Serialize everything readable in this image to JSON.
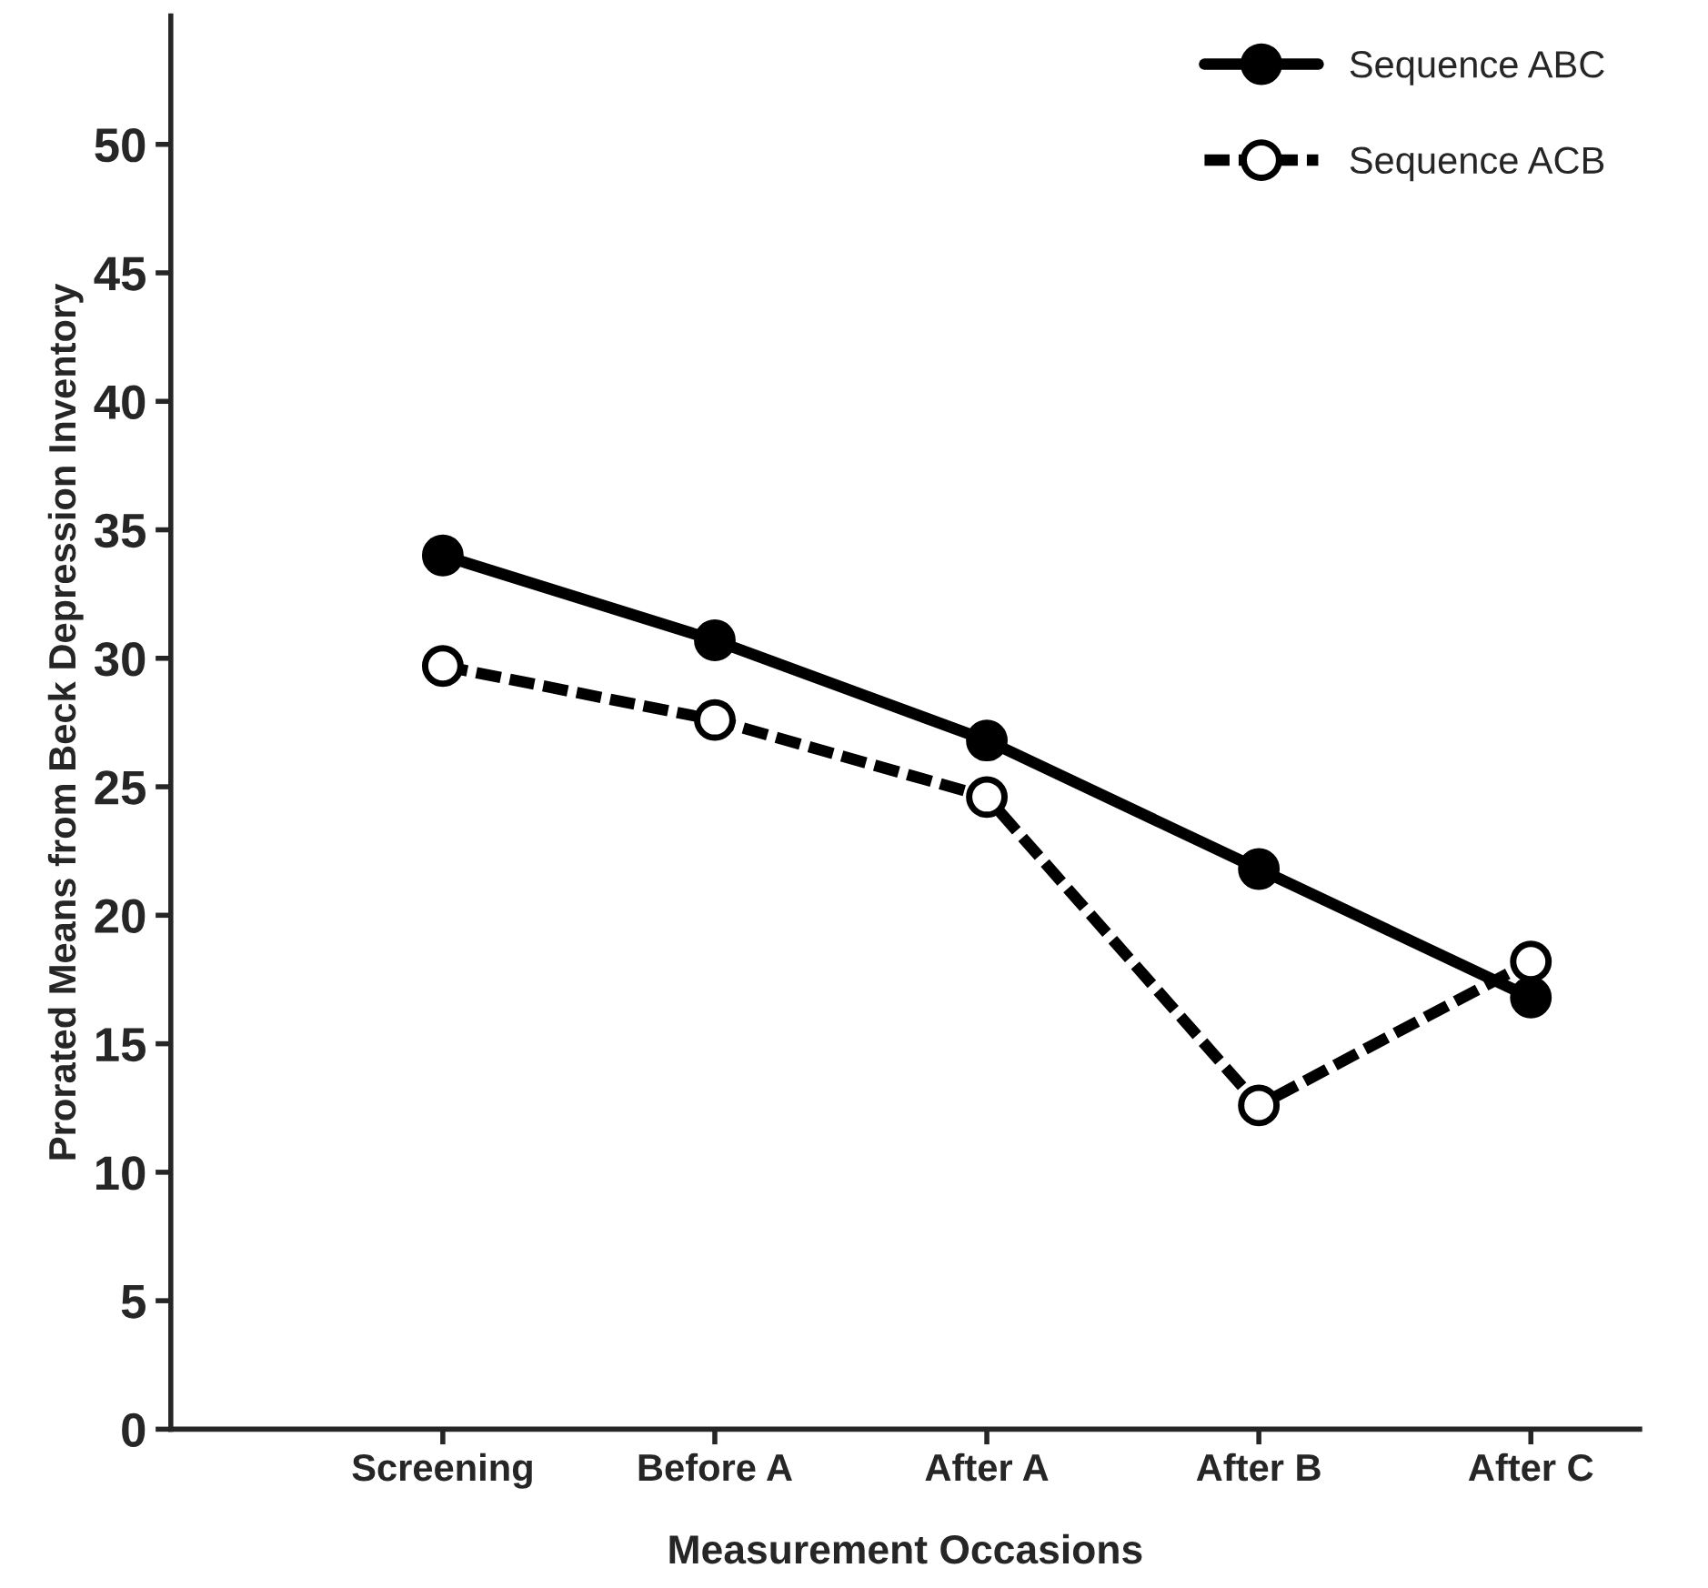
{
  "chart_data": {
    "type": "line",
    "xlabel": "Measurement Occasions",
    "ylabel": "Prorated Means from Beck Depression Inventory",
    "categories": [
      "Screening",
      "Before A",
      "After A",
      "After B",
      "After C"
    ],
    "series": [
      {
        "name": "Sequence ABC",
        "color": "#000000",
        "line_style": "solid",
        "values": [
          34,
          30.7,
          26.8,
          21.8,
          16.8
        ]
      },
      {
        "name": "Sequence ACB",
        "color": "#000000",
        "line_style": "dashed",
        "values": [
          29.7,
          27.6,
          24.6,
          12.6,
          18.2
        ]
      }
    ],
    "ylim": [
      0,
      55
    ],
    "yticks": [
      0,
      5,
      10,
      15,
      20,
      25,
      30,
      35,
      40,
      45,
      50
    ],
    "marker": "circle",
    "legend": "top right",
    "grid": false
  }
}
